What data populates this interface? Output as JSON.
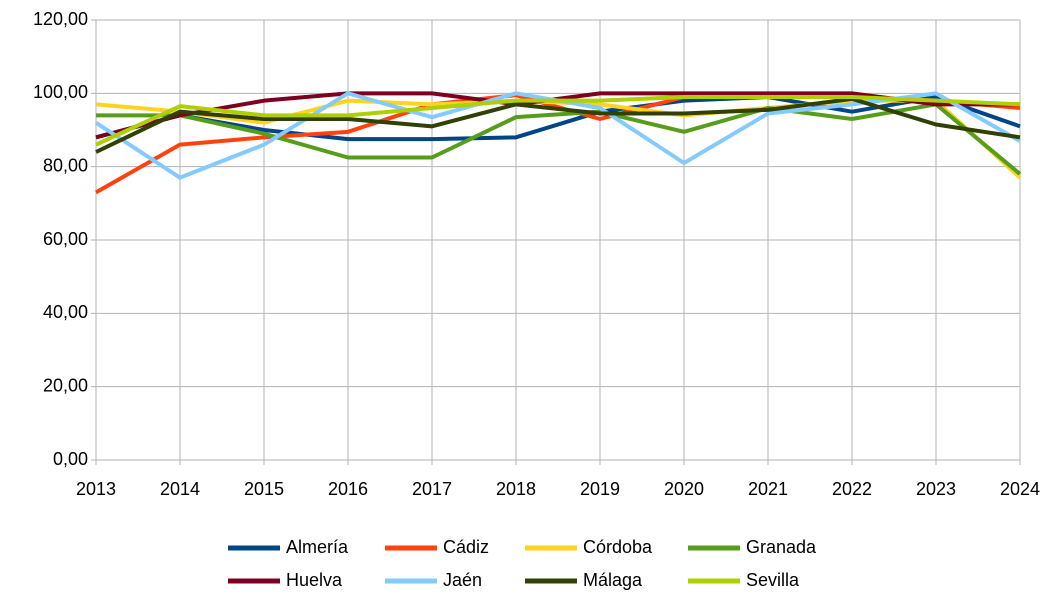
{
  "chart_data": {
    "type": "line",
    "x": [
      2013,
      2014,
      2015,
      2016,
      2017,
      2018,
      2019,
      2020,
      2021,
      2022,
      2023,
      2024
    ],
    "xlim": [
      2013,
      2024
    ],
    "xticks": [
      2013,
      2014,
      2015,
      2016,
      2017,
      2018,
      2019,
      2020,
      2021,
      2022,
      2023,
      2024
    ],
    "ylim": [
      0,
      120
    ],
    "yticks": [
      {
        "value": 0,
        "label": "0,00"
      },
      {
        "value": 20,
        "label": "20,00"
      },
      {
        "value": 40,
        "label": "40,00"
      },
      {
        "value": 60,
        "label": "60,00"
      },
      {
        "value": 80,
        "label": "80,00"
      },
      {
        "value": 100,
        "label": "100,00"
      },
      {
        "value": 120,
        "label": "120,00"
      }
    ],
    "grid": true,
    "legend": "bottom",
    "series": [
      {
        "name": "Almería",
        "color": "#004586",
        "values": [
          88,
          94,
          90,
          87.5,
          87.5,
          88,
          95,
          98,
          99,
          95,
          99,
          91
        ]
      },
      {
        "name": "Cádiz",
        "color": "#ff420e",
        "values": [
          73,
          86,
          88,
          89.5,
          97,
          99.5,
          93,
          99,
          99,
          99,
          98,
          96
        ]
      },
      {
        "name": "Córdoba",
        "color": "#ffd320",
        "values": [
          97,
          95,
          92,
          98,
          97,
          98,
          97,
          94,
          96,
          98,
          98,
          77
        ]
      },
      {
        "name": "Granada",
        "color": "#579d1c",
        "values": [
          94,
          94,
          89,
          82.5,
          82.5,
          93.5,
          95,
          89.5,
          96,
          93,
          97,
          78
        ]
      },
      {
        "name": "Huelva",
        "color": "#7e0021",
        "values": [
          88,
          94,
          98,
          100,
          100,
          97,
          100,
          100,
          100,
          100,
          97,
          97
        ]
      },
      {
        "name": "Jaén",
        "color": "#83caff",
        "values": [
          92,
          77,
          86,
          100,
          93.5,
          100,
          96,
          81,
          94.5,
          97,
          100,
          87
        ]
      },
      {
        "name": "Málaga",
        "color": "#314004",
        "values": [
          84,
          95,
          93,
          93,
          91,
          97,
          94.5,
          94.5,
          95.5,
          98.5,
          91.5,
          88
        ]
      },
      {
        "name": "Sevilla",
        "color": "#aecf00",
        "values": [
          86,
          96.5,
          94,
          94,
          96,
          98,
          98,
          99,
          99,
          99,
          98,
          97
        ]
      }
    ]
  }
}
